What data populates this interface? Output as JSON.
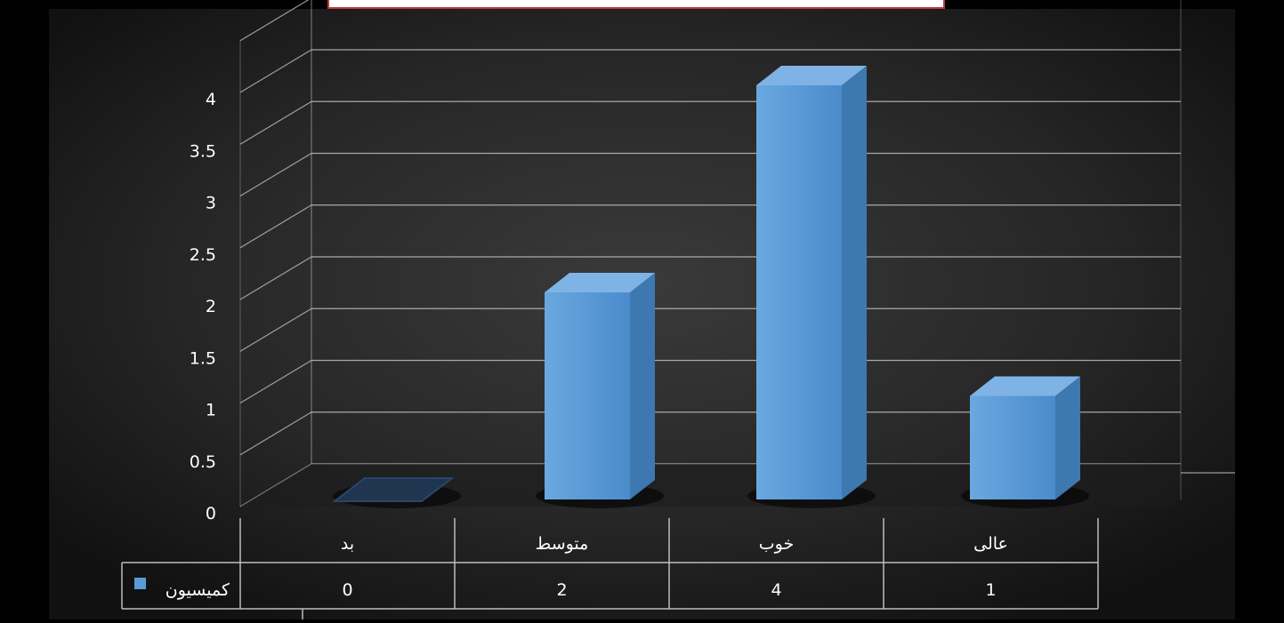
{
  "colors": {
    "bar_front": "#5b9bd5",
    "bar_side": "#3e78b0",
    "bar_top": "#7fb3e6",
    "gridline": "#c8c8c8",
    "table_border": "#bdbdbd",
    "frame_border": "#c0393b"
  },
  "chart_data": {
    "type": "bar",
    "categories": [
      "بد",
      "متوسط",
      "خوب",
      "عالی"
    ],
    "series": [
      {
        "name": "کمیسیون",
        "values": [
          0,
          2,
          4,
          1
        ]
      }
    ],
    "ylim": [
      0,
      4.5
    ],
    "y_ticks": [
      "0",
      "0.5",
      "1",
      "1.5",
      "2",
      "2.5",
      "3",
      "3.5",
      "4"
    ],
    "title": "",
    "xlabel": "",
    "ylabel": "",
    "grid": true,
    "legend_placement": "data-table",
    "data_table": {
      "row_label": "کمیسیون",
      "values": [
        "0",
        "2",
        "4",
        "1"
      ]
    }
  }
}
